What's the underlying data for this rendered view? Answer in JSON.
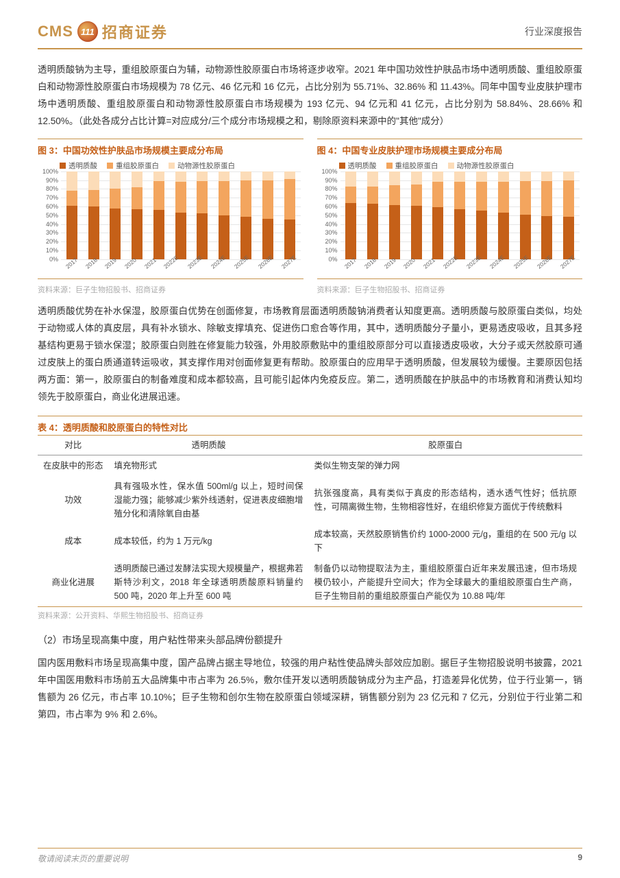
{
  "header": {
    "cms": "CMS",
    "logo_inner": "111",
    "brand_cn": "招商证券",
    "doc_type": "行业深度报告"
  },
  "colors": {
    "accent": "#c8944b",
    "chart_title": "#c56018",
    "series1": "#c56018",
    "series2": "#f3a55e",
    "series3": "#fcdcb8",
    "grid": "#e6e6e6",
    "text": "#333333",
    "muted": "#aaaaaa"
  },
  "para1": "透明质酸钠为主导，重组胶原蛋白为辅，动物源性胶原蛋白市场将逐步收窄。2021 年中国功效性护肤品市场中透明质酸、重组胶原蛋白和动物源性胶原蛋白市场规模为 78 亿元、46 亿元和 16 亿元，占比分别为 55.71%、32.86% 和 11.43%。同年中国专业皮肤护理市场中透明质酸、重组胶原蛋白和动物源性胶原蛋白市场规模为 193 亿元、94 亿元和 41 亿元，占比分别为 58.84%、28.66% 和 12.50%。（此处各成分占比计算=对应成分/三个成分市场规模之和，剔除原资料来源中的\"其他\"成分）",
  "chart3": {
    "title": "图 3：中国功效性护肤品市场规模主要成分布局",
    "legend": [
      "透明质酸",
      "重组胶原蛋白",
      "动物源性胶原蛋白"
    ],
    "categories": [
      "2017",
      "2018",
      "2019",
      "2020",
      "2021",
      "2022E",
      "2023E",
      "2024E",
      "2025E",
      "2026E",
      "2027E"
    ],
    "series": [
      [
        61,
        60,
        58,
        57,
        56,
        53,
        52,
        50,
        48,
        46,
        45
      ],
      [
        17,
        19,
        22,
        25,
        33,
        35,
        37,
        39,
        42,
        44,
        46
      ],
      [
        22,
        21,
        20,
        18,
        11,
        12,
        11,
        11,
        10,
        10,
        9
      ]
    ],
    "y_ticks": [
      0,
      10,
      20,
      30,
      40,
      50,
      60,
      70,
      80,
      90,
      100
    ],
    "y_suffix": "%",
    "source": "资料来源：巨子生物招股书、招商证券"
  },
  "chart4": {
    "title": "图 4：中国专业皮肤护理市场规模主要成分布局",
    "legend": [
      "透明质酸",
      "重组胶原蛋白",
      "动物源性胶原蛋白"
    ],
    "categories": [
      "2017",
      "2018",
      "2019",
      "2020",
      "2021",
      "2022E",
      "2023E",
      "2024E",
      "2025E",
      "2026E",
      "2027E"
    ],
    "series": [
      [
        64,
        63,
        62,
        61,
        59,
        57,
        55,
        53,
        51,
        49,
        48
      ],
      [
        19,
        20,
        22,
        24,
        29,
        31,
        33,
        35,
        38,
        40,
        42
      ],
      [
        17,
        17,
        16,
        15,
        12,
        12,
        12,
        12,
        11,
        11,
        10
      ]
    ],
    "y_ticks": [
      0,
      10,
      20,
      30,
      40,
      50,
      60,
      70,
      80,
      90,
      100
    ],
    "y_suffix": "%",
    "source": "资料来源：巨子生物招股书、招商证券"
  },
  "para2": "透明质酸优势在补水保湿，胶原蛋白优势在创面修复，市场教育层面透明质酸钠消费者认知度更高。透明质酸与胶原蛋白类似，均处于动物或人体的真皮层，具有补水锁水、除敏支撑填充、促进伤口愈合等作用，其中，透明质酸分子量小，更易透皮吸收，且其多羟基结构更易于锁水保湿；胶原蛋白则胜在修复能力较强，外用胶原敷贴中的重组胶原部分可以直接透皮吸收，大分子或天然胶原可通过皮肤上的蛋白质通道转运吸收，其支撑作用对创面修复更有帮助。胶原蛋白的应用早于透明质酸，但发展较为缓慢。主要原因包括两方面：第一，胶原蛋白的制备难度和成本都较高，且可能引起体内免疫反应。第二，透明质酸在护肤品中的市场教育和消费认知均领先于胶原蛋白，商业化进展迅速。",
  "table4": {
    "title": "表 4：透明质酸和胶原蛋白的特性对比",
    "headers": [
      "对比",
      "透明质酸",
      "胶原蛋白"
    ],
    "rows": [
      {
        "label": "在皮肤中的形态",
        "c1": "填充物形式",
        "c2": "类似生物支架的弹力网"
      },
      {
        "label": "功效",
        "c1": "具有强吸水性，保水值 500ml/g 以上，短时间保湿能力强；能够减少紫外线透射，促进表皮细胞增殖分化和清除氧自由基",
        "c2": "抗张强度高，具有类似于真皮的形态结构，透水透气性好；低抗原性，可隔离微生物，生物相容性好，在组织修复方面优于传统敷料"
      },
      {
        "label": "成本",
        "c1": "成本较低，约为 1 万元/kg",
        "c2": "成本较高，天然胶原销售价约 1000-2000 元/g，重组的在 500 元/g 以下"
      },
      {
        "label": "商业化进展",
        "c1": "透明质酸已通过发酵法实现大规模量产，根据弗若斯特沙利文，2018 年全球透明质酸原料销量约 500 吨，2020 年上升至 600 吨",
        "c2": "制备仍以动物提取法为主，重组胶原蛋白近年来发展迅速，但市场规模仍较小，产能提升空间大；作为全球最大的重组胶原蛋白生产商，巨子生物目前的重组胶原蛋白产能仅为 10.88 吨/年"
      }
    ],
    "source": "资料来源：公开资料、华熙生物招股书、招商证券"
  },
  "subhead": "（2）市场呈现高集中度，用户粘性带来头部品牌份额提升",
  "para3": "国内医用敷料市场呈现高集中度，国产品牌占据主导地位，较强的用户粘性使品牌头部效应加剧。据巨子生物招股说明书披露，2021 年中国医用敷料市场前五大品牌集中市占率为 26.5%，敷尔佳开发以透明质酸钠成分为主产品，打造差异化优势，位于行业第一，销售额为 26 亿元，市占率 10.10%；巨子生物和创尔生物在胶原蛋白领域深耕，销售额分别为 23 亿元和 7 亿元，分别位于行业第二和第四，市占率为 9% 和 2.6%。",
  "footer": {
    "note": "敬请阅读末页的重要说明",
    "page": "9"
  }
}
